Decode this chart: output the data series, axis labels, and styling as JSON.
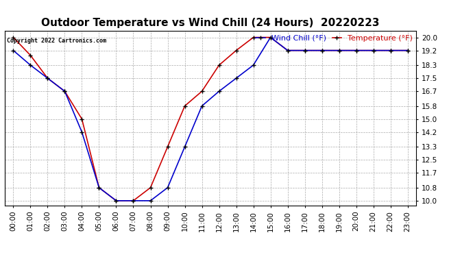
{
  "title": "Outdoor Temperature vs Wind Chill (24 Hours)  20220223",
  "copyright": "Copyright 2022 Cartronics.com",
  "legend_wind_chill": "Wind Chill (°F)",
  "legend_temperature": "Temperature (°F)",
  "x_labels": [
    "00:00",
    "01:00",
    "02:00",
    "03:00",
    "04:00",
    "05:00",
    "06:00",
    "07:00",
    "08:00",
    "09:00",
    "10:00",
    "11:00",
    "12:00",
    "13:00",
    "14:00",
    "15:00",
    "16:00",
    "17:00",
    "18:00",
    "19:00",
    "20:00",
    "21:00",
    "22:00",
    "23:00"
  ],
  "temperature": [
    20.0,
    18.9,
    17.5,
    16.7,
    15.0,
    10.8,
    10.0,
    10.0,
    10.8,
    13.3,
    15.8,
    16.7,
    18.3,
    19.2,
    20.0,
    20.0,
    19.2,
    19.2,
    19.2,
    19.2,
    19.2,
    19.2,
    19.2,
    19.2
  ],
  "wind_chill": [
    19.2,
    18.3,
    17.5,
    16.7,
    14.2,
    10.8,
    10.0,
    10.0,
    10.0,
    10.8,
    13.3,
    15.8,
    16.7,
    17.5,
    18.3,
    20.0,
    19.2,
    19.2,
    19.2,
    19.2,
    19.2,
    19.2,
    19.2,
    19.2
  ],
  "y_ticks": [
    10.0,
    10.8,
    11.7,
    12.5,
    13.3,
    14.2,
    15.0,
    15.8,
    16.7,
    17.5,
    18.3,
    19.2,
    20.0
  ],
  "ylim": [
    9.7,
    20.4
  ],
  "temp_color": "#cc0000",
  "wind_chill_color": "#0000cc",
  "marker_color": "black",
  "title_color": "black",
  "bg_color": "#ffffff",
  "grid_color": "#aaaaaa",
  "copyright_color": "black",
  "title_fontsize": 11,
  "axis_fontsize": 7.5,
  "legend_fontsize": 8
}
